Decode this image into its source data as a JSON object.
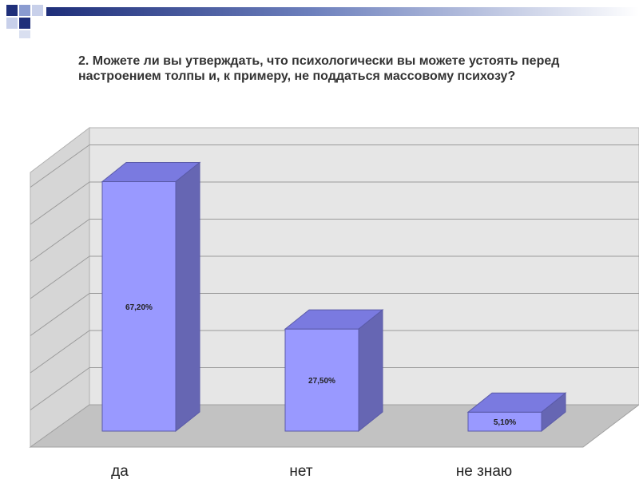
{
  "colors": {
    "header_dark": "#1f2f7a",
    "header_mid": "#7f92c8",
    "header_light": "#d9dff0",
    "bar_front": "#9999ff",
    "bar_top": "#7a7ae0",
    "bar_side": "#6666b3",
    "wall": "#e4e4e4",
    "floor": "#c2c2c2",
    "gridline": "#9a9a9a"
  },
  "chart_data": {
    "type": "bar",
    "title": "2. Можете ли вы утверждать, что психологически вы можете устоять перед настроением толпы и, к примеру, не поддаться массовому психозу?",
    "categories": [
      "да",
      "нет",
      "не знаю"
    ],
    "values": [
      67.2,
      27.5,
      5.1
    ],
    "data_labels": [
      "67,20%",
      "27,50%",
      "5,10%"
    ],
    "ylim": [
      0,
      80
    ],
    "grid": true,
    "three_d": true,
    "legend": "none"
  }
}
